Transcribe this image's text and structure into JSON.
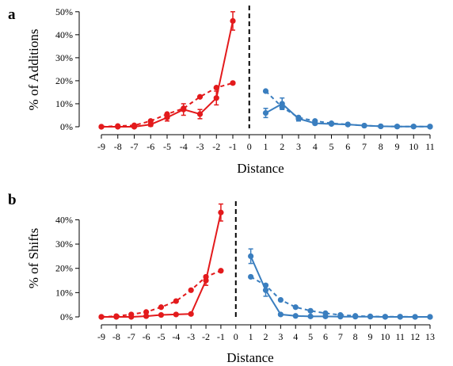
{
  "chart_data": [
    {
      "panel": "a",
      "type": "line",
      "xlabel": "Distance",
      "ylabel": "% of Additions",
      "x_ticks": [
        -9,
        -8,
        -7,
        -6,
        -5,
        -4,
        -3,
        -2,
        -1,
        0,
        1,
        2,
        3,
        4,
        5,
        6,
        7,
        8,
        9,
        10,
        11
      ],
      "y_ticks": [
        0,
        10,
        20,
        30,
        40,
        50
      ],
      "y_tick_labels": [
        "0%",
        "10%",
        "20%",
        "30%",
        "40%",
        "50%"
      ],
      "ylim": [
        0,
        52
      ],
      "xlim": [
        -9,
        11
      ],
      "vline": 0,
      "series": [
        {
          "color": "#e31a1c",
          "style": "solid",
          "x": [
            -9,
            -8,
            -7,
            -6,
            -5,
            -4,
            -3,
            -2,
            -1
          ],
          "y": [
            0,
            0,
            0,
            1,
            4,
            7.5,
            5.5,
            12.5,
            46
          ],
          "err": [
            0,
            0,
            0,
            0.8,
            1.5,
            2.5,
            2,
            3,
            4
          ]
        },
        {
          "color": "#e31a1c",
          "style": "dashed",
          "x": [
            -9,
            -8,
            -7,
            -6,
            -5,
            -4,
            -3,
            -2,
            -1
          ],
          "y": [
            0,
            0.3,
            0.6,
            2.5,
            5.5,
            8,
            13,
            17,
            19
          ],
          "err": [
            0,
            0,
            0,
            0,
            0,
            0,
            0,
            0,
            0
          ]
        },
        {
          "color": "#3a7ebf",
          "style": "solid",
          "x": [
            1,
            2,
            3,
            4,
            5,
            6,
            7,
            8,
            9,
            10,
            11
          ],
          "y": [
            6,
            10,
            3.5,
            1.5,
            1.2,
            1,
            0.5,
            0.2,
            0.1,
            0.1,
            0.1
          ],
          "err": [
            2,
            2.5,
            1,
            0.6,
            0.4,
            0.3,
            0.2,
            0.1,
            0,
            0,
            0
          ]
        },
        {
          "color": "#3a7ebf",
          "style": "dashed",
          "x": [
            1,
            2,
            3,
            4,
            5,
            6,
            7,
            8,
            9,
            10,
            11
          ],
          "y": [
            15.5,
            8.5,
            4,
            2.5,
            1.5,
            1,
            0.5,
            0.2,
            0.1,
            0.1,
            0
          ],
          "err": [
            0,
            0,
            0,
            0,
            0,
            0,
            0,
            0,
            0,
            0,
            0
          ]
        }
      ]
    },
    {
      "panel": "b",
      "type": "line",
      "xlabel": "Distance",
      "ylabel": "% of Shifts",
      "x_ticks": [
        -9,
        -8,
        -7,
        -6,
        -5,
        -4,
        -3,
        -2,
        -1,
        0,
        1,
        2,
        3,
        4,
        5,
        6,
        7,
        8,
        9,
        10,
        11,
        12,
        13
      ],
      "y_ticks": [
        0,
        10,
        20,
        30,
        40
      ],
      "y_tick_labels": [
        "0%",
        "10%",
        "20%",
        "30%",
        "40%"
      ],
      "ylim": [
        0,
        47
      ],
      "xlim": [
        -9,
        13
      ],
      "vline": 0,
      "series": [
        {
          "color": "#e31a1c",
          "style": "solid",
          "x": [
            -9,
            -8,
            -7,
            -6,
            -5,
            -4,
            -3,
            -2,
            -1
          ],
          "y": [
            0,
            0,
            0,
            0.3,
            0.8,
            1,
            1.2,
            15,
            43
          ],
          "err": [
            0,
            0,
            0,
            0.2,
            0.3,
            0.3,
            0.4,
            2,
            3.5
          ]
        },
        {
          "color": "#e31a1c",
          "style": "dashed",
          "x": [
            -9,
            -8,
            -7,
            -6,
            -5,
            -4,
            -3,
            -2,
            -1
          ],
          "y": [
            0,
            0.3,
            1,
            2,
            4,
            6.5,
            11,
            16.5,
            19
          ],
          "err": [
            0,
            0,
            0,
            0,
            0,
            0,
            0,
            0,
            0
          ]
        },
        {
          "color": "#3a7ebf",
          "style": "solid",
          "x": [
            1,
            2,
            3,
            4,
            5,
            6,
            7,
            8,
            9,
            10,
            11,
            12,
            13
          ],
          "y": [
            25,
            11,
            1,
            0.4,
            0.2,
            0.2,
            0.1,
            0.1,
            0.1,
            0,
            0,
            0,
            0
          ],
          "err": [
            3,
            2.5,
            0.4,
            0.2,
            0.1,
            0.1,
            0,
            0,
            0,
            0,
            0,
            0,
            0
          ]
        },
        {
          "color": "#3a7ebf",
          "style": "dashed",
          "x": [
            1,
            2,
            3,
            4,
            5,
            6,
            7,
            8,
            9,
            10,
            11,
            12,
            13
          ],
          "y": [
            16.5,
            13,
            7,
            4,
            2.5,
            1.5,
            0.8,
            0.4,
            0.2,
            0.1,
            0.1,
            0,
            0
          ],
          "err": [
            0,
            0,
            0,
            0,
            0,
            0,
            0,
            0,
            0,
            0,
            0,
            0,
            0
          ]
        }
      ]
    }
  ]
}
